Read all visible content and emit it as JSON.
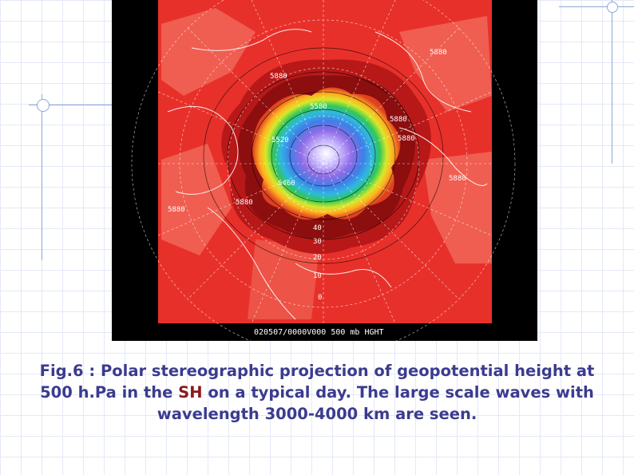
{
  "figure": {
    "footer_label": "020507/0000V000 500 mb HGHT",
    "contour_labels": {
      "ring1": "5880",
      "ring2": "5880",
      "ring3": "5880",
      "ring4": "5880",
      "ring5": "5880",
      "ring6": "5880",
      "ring7": "5880",
      "inner1": "5580",
      "inner2": "5520",
      "inner3": "5460"
    },
    "latitude_labels": [
      "40",
      "30",
      "20",
      "10",
      "0"
    ]
  },
  "caption": {
    "part1": "Fig.6 : Polar stereographic projection of geopotential height at 500 h.Pa in the ",
    "highlight": "SH",
    "part2": " on a typical day. The large scale waves with wavelength 3000-4000 km are seen."
  },
  "colors": {
    "background_red": "#e8302a",
    "caption_text": "#3b3b8f",
    "highlight_text": "#8b1a1a"
  }
}
